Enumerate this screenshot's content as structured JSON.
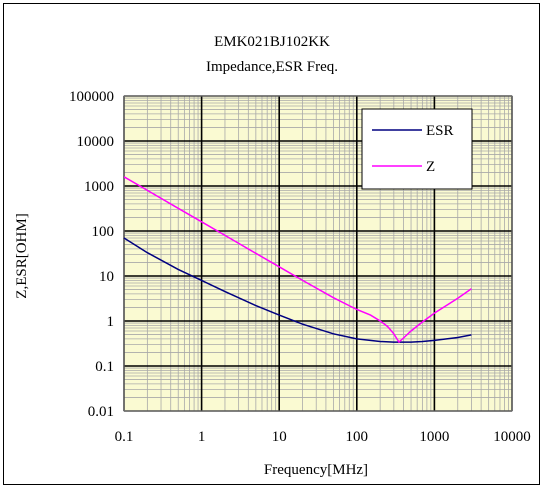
{
  "chart_data": {
    "type": "line",
    "title": "EMK021BJ102KK",
    "subtitle": "Impedance,ESR Freq.",
    "xlabel": "Frequency[MHz]",
    "ylabel": "Z,ESR[OHM]",
    "xscale": "log",
    "yscale": "log",
    "xlim": [
      0.1,
      10000
    ],
    "ylim": [
      0.01,
      100000
    ],
    "x_ticks": [
      "0.1",
      "1",
      "10",
      "100",
      "1000",
      "10000"
    ],
    "y_ticks": [
      "0.01",
      "0.1",
      "1",
      "10",
      "100",
      "1000",
      "10000",
      "100000"
    ],
    "grid": true,
    "legend_position": "top-right",
    "plot_background": "#fafad2",
    "series": [
      {
        "name": "ESR",
        "color": "#000080",
        "x": [
          0.1,
          0.2,
          0.5,
          1,
          2,
          5,
          10,
          20,
          50,
          100,
          200,
          300,
          400,
          500,
          700,
          1000,
          2000,
          3000
        ],
        "y": [
          70,
          33,
          14,
          8,
          4.5,
          2.2,
          1.35,
          0.85,
          0.52,
          0.4,
          0.35,
          0.34,
          0.34,
          0.34,
          0.35,
          0.37,
          0.43,
          0.49
        ]
      },
      {
        "name": "Z",
        "color": "#ff00ff",
        "x": [
          0.1,
          0.2,
          0.5,
          1,
          2,
          5,
          10,
          20,
          50,
          100,
          150,
          200,
          250,
          300,
          350,
          400,
          500,
          700,
          1000,
          2000,
          3000
        ],
        "y": [
          1600,
          800,
          320,
          160,
          80,
          32,
          16,
          8,
          3.3,
          1.8,
          1.35,
          1.0,
          0.75,
          0.52,
          0.34,
          0.42,
          0.6,
          0.95,
          1.5,
          3.2,
          5.2
        ]
      }
    ]
  }
}
